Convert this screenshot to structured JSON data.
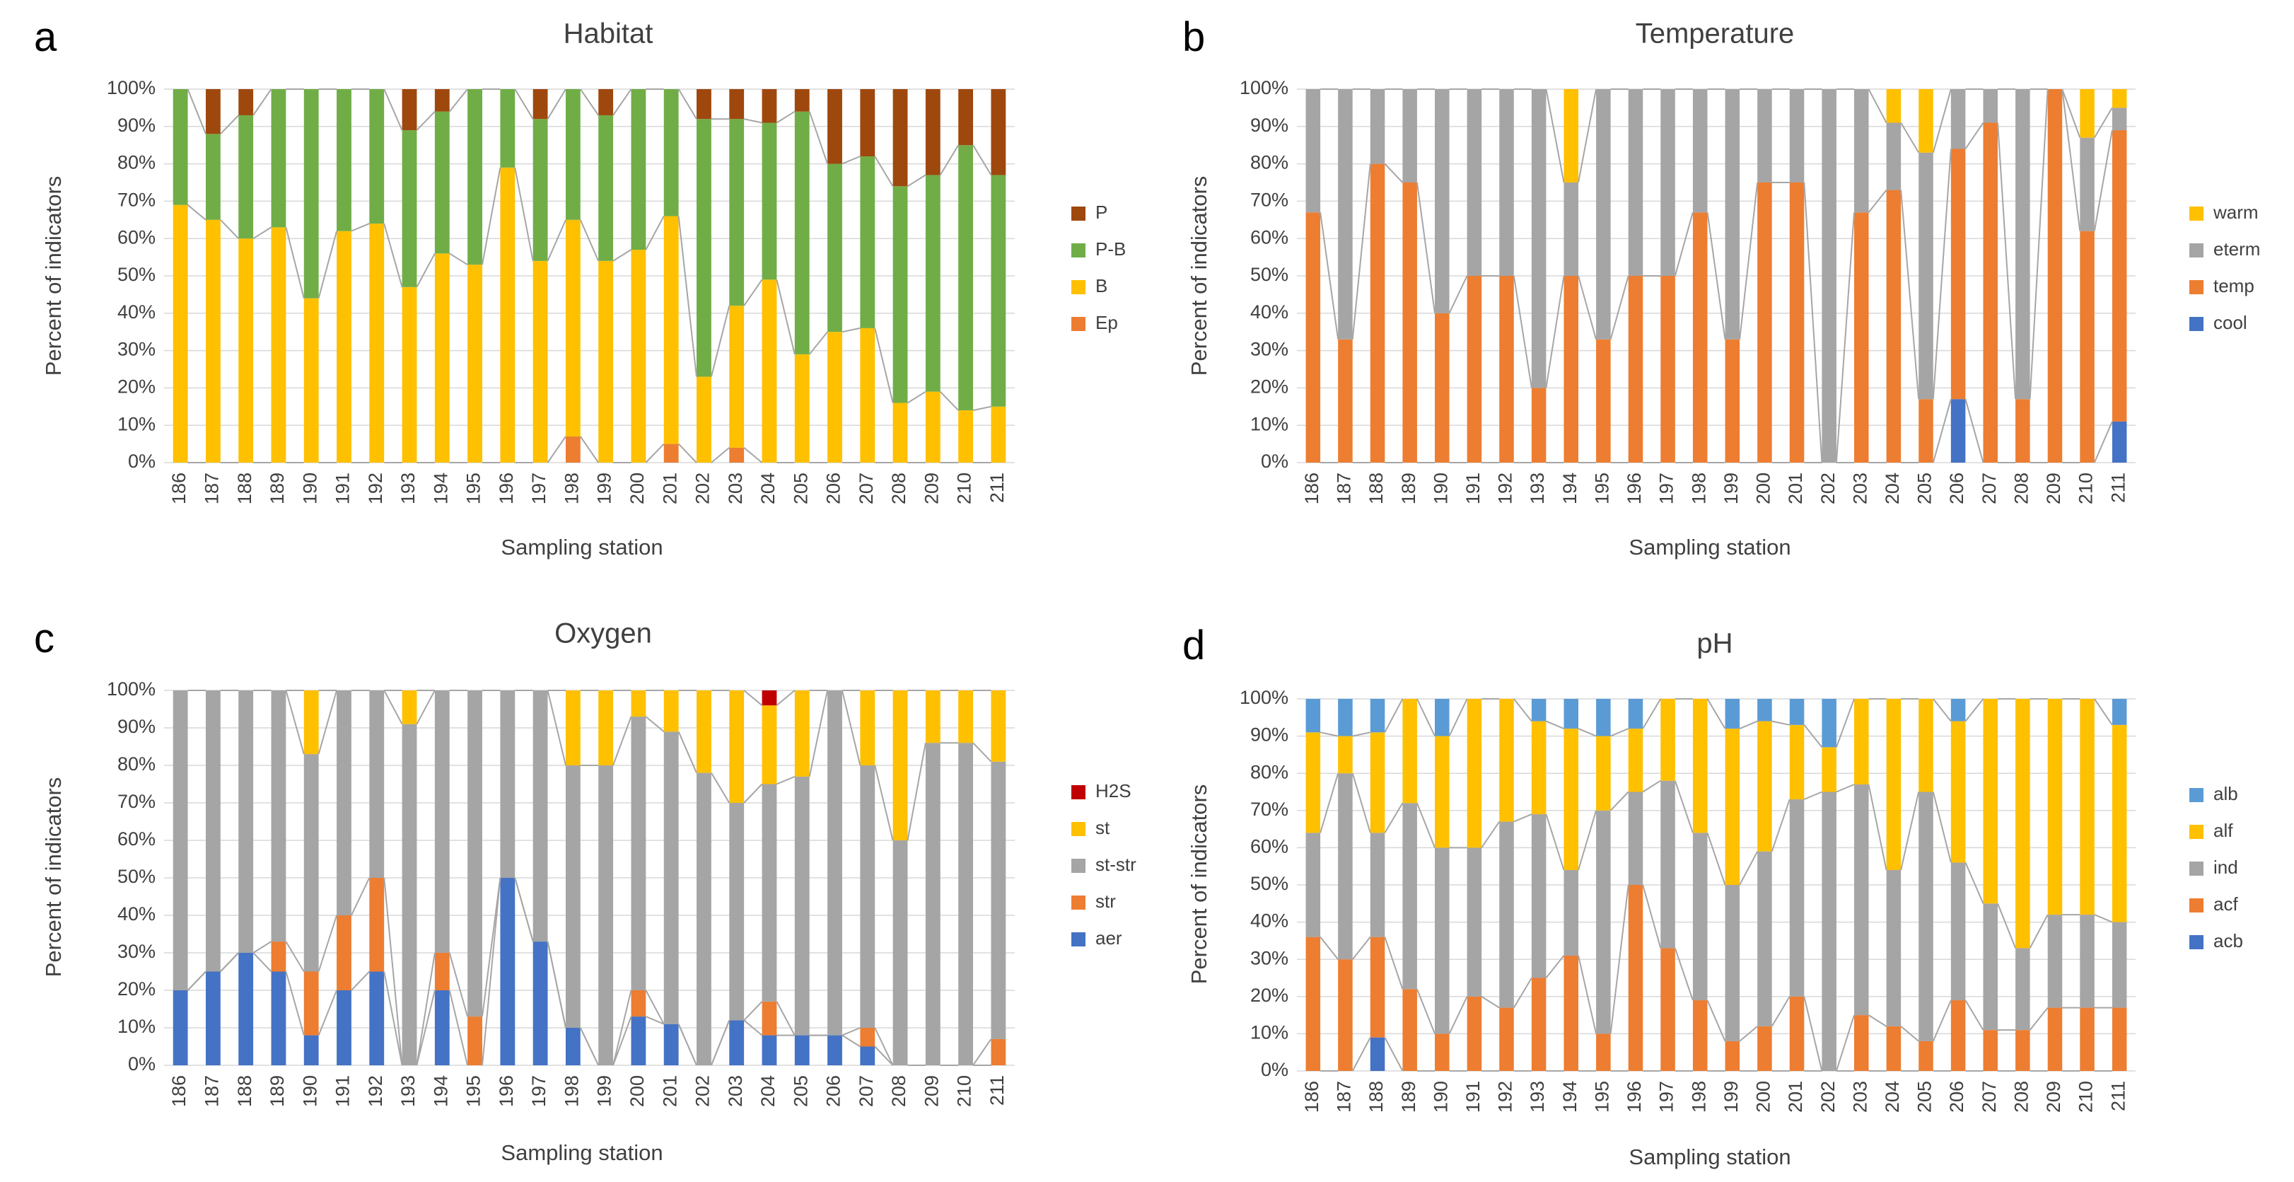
{
  "figure": {
    "panels": [
      "a",
      "b",
      "c",
      "d"
    ]
  },
  "chart_data": [
    {
      "type": "bar",
      "stacked": true,
      "panel": "a",
      "title": "Habitat",
      "xlabel": "Sampling station",
      "ylabel": "Percent of indicators",
      "ylim": [
        0,
        100
      ],
      "yticks": [
        "0%",
        "10%",
        "20%",
        "30%",
        "40%",
        "50%",
        "60%",
        "70%",
        "80%",
        "90%",
        "100%"
      ],
      "grid": true,
      "legend": "right",
      "categories": [
        "186",
        "187",
        "188",
        "189",
        "190",
        "191",
        "192",
        "193",
        "194",
        "195",
        "196",
        "197",
        "198",
        "199",
        "200",
        "201",
        "202",
        "203",
        "204",
        "205",
        "206",
        "207",
        "208",
        "209",
        "210",
        "211"
      ],
      "series": [
        {
          "name": "Ep",
          "color": "#ED7D31",
          "values": [
            0,
            0,
            0,
            0,
            0,
            0,
            0,
            0,
            0,
            0,
            0,
            0,
            7,
            0,
            0,
            5,
            0,
            4,
            0,
            0,
            0,
            0,
            0,
            0,
            0,
            0
          ]
        },
        {
          "name": "B",
          "color": "#FFC000",
          "values": [
            69,
            65,
            60,
            63,
            44,
            62,
            64,
            47,
            56,
            53,
            79,
            54,
            58,
            54,
            57,
            61,
            23,
            38,
            49,
            29,
            35,
            36,
            16,
            19,
            14,
            15
          ]
        },
        {
          "name": "P-B",
          "color": "#70AD47",
          "values": [
            31,
            23,
            33,
            37,
            56,
            38,
            36,
            42,
            38,
            47,
            21,
            38,
            35,
            39,
            43,
            34,
            69,
            50,
            42,
            65,
            45,
            46,
            58,
            58,
            71,
            62
          ]
        },
        {
          "name": "P",
          "color": "#9E480E",
          "values": [
            0,
            12,
            7,
            0,
            0,
            0,
            0,
            11,
            6,
            0,
            0,
            8,
            0,
            7,
            0,
            0,
            8,
            8,
            9,
            6,
            20,
            18,
            26,
            23,
            15,
            23
          ]
        }
      ]
    },
    {
      "type": "bar",
      "stacked": true,
      "panel": "b",
      "title": "Temperature",
      "xlabel": "Sampling station",
      "ylabel": "Percent of indicators",
      "ylim": [
        0,
        100
      ],
      "yticks": [
        "0%",
        "10%",
        "20%",
        "30%",
        "40%",
        "50%",
        "60%",
        "70%",
        "80%",
        "90%",
        "100%"
      ],
      "grid": true,
      "legend": "right",
      "categories": [
        "186",
        "187",
        "188",
        "189",
        "190",
        "191",
        "192",
        "193",
        "194",
        "195",
        "196",
        "197",
        "198",
        "199",
        "200",
        "201",
        "202",
        "203",
        "204",
        "205",
        "206",
        "207",
        "208",
        "209",
        "210",
        "211"
      ],
      "series": [
        {
          "name": "cool",
          "color": "#4472C4",
          "values": [
            0,
            0,
            0,
            0,
            0,
            0,
            0,
            0,
            0,
            0,
            0,
            0,
            0,
            0,
            0,
            0,
            0,
            0,
            0,
            0,
            17,
            0,
            0,
            0,
            0,
            11
          ]
        },
        {
          "name": "temp",
          "color": "#ED7D31",
          "values": [
            67,
            33,
            80,
            75,
            40,
            50,
            50,
            20,
            50,
            33,
            50,
            50,
            67,
            33,
            75,
            75,
            0,
            67,
            73,
            17,
            67,
            91,
            17,
            100,
            62,
            78
          ]
        },
        {
          "name": "eterm",
          "color": "#A5A5A5",
          "values": [
            33,
            67,
            20,
            25,
            60,
            50,
            50,
            80,
            25,
            67,
            50,
            50,
            33,
            67,
            25,
            25,
            100,
            33,
            18,
            66,
            16,
            9,
            83,
            0,
            25,
            6
          ]
        },
        {
          "name": "warm",
          "color": "#FFC000",
          "values": [
            0,
            0,
            0,
            0,
            0,
            0,
            0,
            0,
            25,
            0,
            0,
            0,
            0,
            0,
            0,
            0,
            0,
            0,
            9,
            17,
            0,
            0,
            0,
            0,
            13,
            5
          ]
        }
      ]
    },
    {
      "type": "bar",
      "stacked": true,
      "panel": "c",
      "title": "Oxygen",
      "xlabel": "Sampling station",
      "ylabel": "Percent of indicators",
      "ylim": [
        0,
        100
      ],
      "yticks": [
        "0%",
        "10%",
        "20%",
        "30%",
        "40%",
        "50%",
        "60%",
        "70%",
        "80%",
        "90%",
        "100%"
      ],
      "grid": true,
      "legend": "right",
      "categories": [
        "186",
        "187",
        "188",
        "189",
        "190",
        "191",
        "192",
        "193",
        "194",
        "195",
        "196",
        "197",
        "198",
        "199",
        "200",
        "201",
        "202",
        "203",
        "204",
        "205",
        "206",
        "207",
        "208",
        "209",
        "210",
        "211"
      ],
      "series": [
        {
          "name": "aer",
          "color": "#4472C4",
          "values": [
            20,
            25,
            30,
            25,
            8,
            20,
            25,
            0,
            20,
            0,
            50,
            33,
            10,
            0,
            13,
            11,
            0,
            12,
            8,
            8,
            8,
            5,
            0,
            0,
            0,
            0
          ]
        },
        {
          "name": "str",
          "color": "#ED7D31",
          "values": [
            0,
            0,
            0,
            8,
            17,
            20,
            25,
            0,
            10,
            13,
            0,
            0,
            0,
            0,
            7,
            0,
            0,
            0,
            9,
            0,
            0,
            5,
            0,
            0,
            0,
            7
          ]
        },
        {
          "name": "st-str",
          "color": "#A5A5A5",
          "values": [
            80,
            75,
            70,
            67,
            58,
            60,
            50,
            91,
            70,
            87,
            50,
            67,
            70,
            80,
            73,
            78,
            78,
            58,
            58,
            69,
            92,
            70,
            60,
            86,
            86,
            74
          ]
        },
        {
          "name": "st",
          "color": "#FFC000",
          "values": [
            0,
            0,
            0,
            0,
            17,
            0,
            0,
            9,
            0,
            0,
            0,
            0,
            20,
            20,
            7,
            11,
            22,
            30,
            21,
            23,
            0,
            20,
            40,
            14,
            14,
            19
          ]
        },
        {
          "name": "H2S",
          "color": "#C00000",
          "values": [
            0,
            0,
            0,
            0,
            0,
            0,
            0,
            0,
            0,
            0,
            0,
            0,
            0,
            0,
            0,
            0,
            0,
            0,
            4,
            0,
            0,
            0,
            0,
            0,
            0,
            0
          ]
        }
      ]
    },
    {
      "type": "bar",
      "stacked": true,
      "panel": "d",
      "title": "pH",
      "xlabel": "Sampling station",
      "ylabel": "Percent of indicators",
      "ylim": [
        0,
        100
      ],
      "yticks": [
        "0%",
        "10%",
        "20%",
        "30%",
        "40%",
        "50%",
        "60%",
        "70%",
        "80%",
        "90%",
        "100%"
      ],
      "grid": true,
      "legend": "right",
      "categories": [
        "186",
        "187",
        "188",
        "189",
        "190",
        "191",
        "192",
        "193",
        "194",
        "195",
        "196",
        "197",
        "198",
        "199",
        "200",
        "201",
        "202",
        "203",
        "204",
        "205",
        "206",
        "207",
        "208",
        "209",
        "210",
        "211"
      ],
      "series": [
        {
          "name": "acb",
          "color": "#4472C4",
          "values": [
            0,
            0,
            9,
            0,
            0,
            0,
            0,
            0,
            0,
            0,
            0,
            0,
            0,
            0,
            0,
            0,
            0,
            0,
            0,
            0,
            0,
            0,
            0,
            0,
            0,
            0
          ]
        },
        {
          "name": "acf",
          "color": "#ED7D31",
          "values": [
            36,
            30,
            27,
            22,
            10,
            20,
            17,
            25,
            31,
            10,
            50,
            33,
            19,
            8,
            12,
            20,
            0,
            15,
            12,
            8,
            19,
            11,
            11,
            17,
            17,
            17
          ]
        },
        {
          "name": "ind",
          "color": "#A5A5A5",
          "values": [
            28,
            50,
            28,
            50,
            50,
            40,
            50,
            44,
            23,
            60,
            25,
            45,
            45,
            42,
            47,
            53,
            75,
            62,
            42,
            67,
            37,
            34,
            22,
            25,
            25,
            23
          ]
        },
        {
          "name": "alf",
          "color": "#FFC000",
          "values": [
            27,
            10,
            27,
            28,
            30,
            40,
            33,
            25,
            38,
            20,
            17,
            22,
            36,
            42,
            35,
            20,
            12,
            23,
            46,
            25,
            38,
            55,
            67,
            58,
            58,
            53
          ]
        },
        {
          "name": "alb",
          "color": "#5B9BD5",
          "values": [
            9,
            10,
            9,
            0,
            10,
            0,
            0,
            6,
            8,
            10,
            8,
            0,
            0,
            8,
            6,
            7,
            13,
            0,
            0,
            0,
            6,
            0,
            0,
            0,
            0,
            7
          ]
        }
      ]
    }
  ]
}
